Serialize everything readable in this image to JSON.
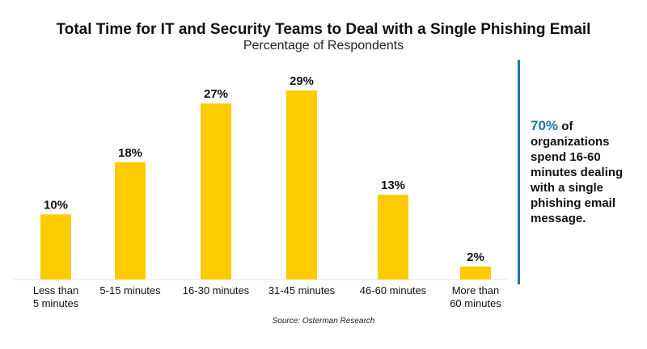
{
  "chart_data": {
    "type": "bar",
    "title": "Total Time for IT and Security Teams to Deal with a Single Phishing Email",
    "subtitle": "Percentage of Respondents",
    "categories": [
      [
        "Less than",
        "5 minutes"
      ],
      [
        "5-15 minutes"
      ],
      [
        "16-30 minutes"
      ],
      [
        "31-45 minutes"
      ],
      [
        "46-60 minutes"
      ],
      [
        "More than",
        "60 minutes"
      ]
    ],
    "values": [
      10,
      18,
      27,
      29,
      13,
      2
    ],
    "value_labels": [
      "10%",
      "18%",
      "27%",
      "29%",
      "13%",
      "2%"
    ],
    "value_unit": "%",
    "ylim": [
      0,
      30
    ],
    "grid": false,
    "bar_color": "#fccb00",
    "source": "Source: Osterman Research"
  },
  "callout": {
    "highlight": "70%",
    "text": " of organizations spend 16-60 minutes dealing with a single phishing email message.",
    "highlight_color": "#1d75a8"
  }
}
